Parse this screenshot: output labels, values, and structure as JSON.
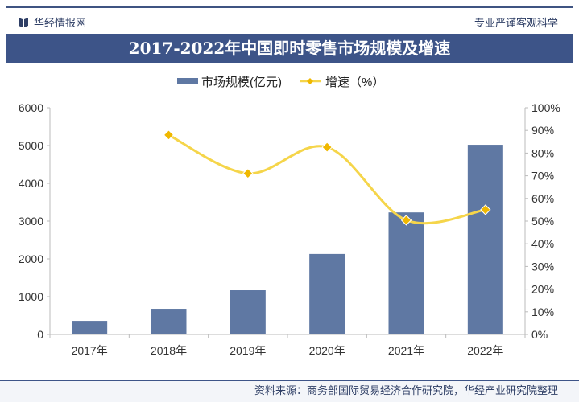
{
  "header": {
    "brand": "华经情报网",
    "slogan": "专业严谨客观科学",
    "title": "2017-2022年中国即时零售市场规模及增速"
  },
  "footer": {
    "source": "资料来源：商务部国际贸易经济合作研究院，华经产业研究院整理"
  },
  "colors": {
    "bar": "#5f78a3",
    "line": "#f5d54a",
    "marker": "#f0b800",
    "title_bg": "#3d5488"
  },
  "chart_data": {
    "type": "bar+line",
    "title": "2017-2022年中国即时零售市场规模及增速",
    "categories": [
      "2017年",
      "2018年",
      "2019年",
      "2020年",
      "2021年",
      "2022年"
    ],
    "series": [
      {
        "name": "市场规模(亿元)",
        "type": "bar",
        "axis": "left",
        "values": [
          360,
          680,
          1170,
          2130,
          3230,
          5020
        ]
      },
      {
        "name": "增速（%）",
        "type": "line",
        "axis": "right",
        "values": [
          null,
          88,
          71,
          82.6,
          50.4,
          55
        ]
      }
    ],
    "y_left": {
      "range": [
        0,
        6000
      ],
      "ticks": [
        "0",
        "1000",
        "2000",
        "3000",
        "4000",
        "5000",
        "6000"
      ]
    },
    "y_right": {
      "range": [
        0,
        100
      ],
      "ticks": [
        "0%",
        "10%",
        "20%",
        "30%",
        "40%",
        "50%",
        "60%",
        "70%",
        "80%",
        "90%",
        "100%"
      ]
    },
    "legend": "top-center",
    "grid": false
  }
}
